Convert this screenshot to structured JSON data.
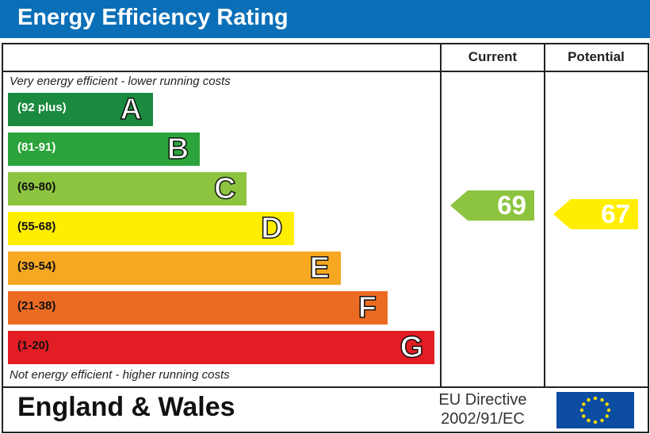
{
  "header": {
    "title": "Energy Efficiency Rating",
    "color": "#0b6fb8"
  },
  "columns": {
    "current": "Current",
    "potential": "Potential"
  },
  "notes": {
    "top": "Very energy efficient - lower running costs",
    "bottom": "Not energy efficient - higher running costs"
  },
  "footer": {
    "region": "England & Wales",
    "directive_line1": "EU Directive",
    "directive_line2": "2002/91/EC",
    "flag_icon": "eu-flag-icon"
  },
  "chart_data": {
    "type": "bar",
    "bands": [
      {
        "letter": "A",
        "range": "(92 plus)",
        "color": "#1a8a3e"
      },
      {
        "letter": "B",
        "range": "(81-91)",
        "color": "#2ca43b"
      },
      {
        "letter": "C",
        "range": "(69-80)",
        "color": "#8cc43f"
      },
      {
        "letter": "D",
        "range": "(55-68)",
        "color": "#ffee00"
      },
      {
        "letter": "E",
        "range": "(39-54)",
        "color": "#f6a821"
      },
      {
        "letter": "F",
        "range": "(21-38)",
        "color": "#ec6b23"
      },
      {
        "letter": "G",
        "range": "(1-20)",
        "color": "#e31d24"
      }
    ],
    "current": {
      "value": "69",
      "band": "C",
      "color": "#8cc43f"
    },
    "potential": {
      "value": "67",
      "band": "D",
      "color": "#ffee00"
    }
  }
}
